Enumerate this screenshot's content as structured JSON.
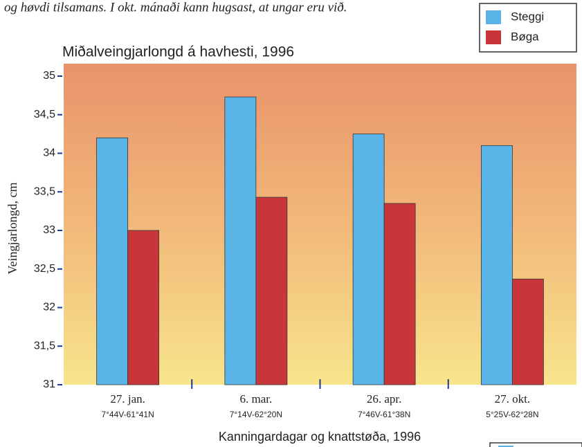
{
  "header_text": "og høvdi tilsamans. I okt. mánaði kann hugsast, at ungar eru við.",
  "chart_data": {
    "type": "bar",
    "title": "Miðalveingjarlongd á havhesti, 1996",
    "y_label": "Veingjarlongd, cm",
    "x_label": "Kanningardagar og knattstøða, 1996",
    "categories": [
      "27. jan.",
      "6. mar.",
      "26. apr.",
      "27. okt."
    ],
    "category_sublabels": [
      "7°44V-61°41N",
      "7°14V-62°20N",
      "7°46V-61°38N",
      "5°25V-62°28N"
    ],
    "series": [
      {
        "name": "Steggi",
        "color": "#5bb4e8",
        "values": [
          34.2,
          34.73,
          34.25,
          34.1
        ]
      },
      {
        "name": "Bøga",
        "color": "#c8363a",
        "values": [
          33.0,
          33.43,
          33.35,
          32.37
        ]
      }
    ],
    "ylim": [
      31,
      35
    ],
    "yticks": [
      31,
      {
        "value": 31.5,
        "label": "31,5"
      },
      32,
      {
        "value": 32.5,
        "label": "32,5"
      },
      33,
      {
        "value": 33.5,
        "label": "33,5"
      },
      34,
      {
        "value": 34.5,
        "label": "34,5"
      },
      35
    ],
    "legend": "top-right"
  }
}
